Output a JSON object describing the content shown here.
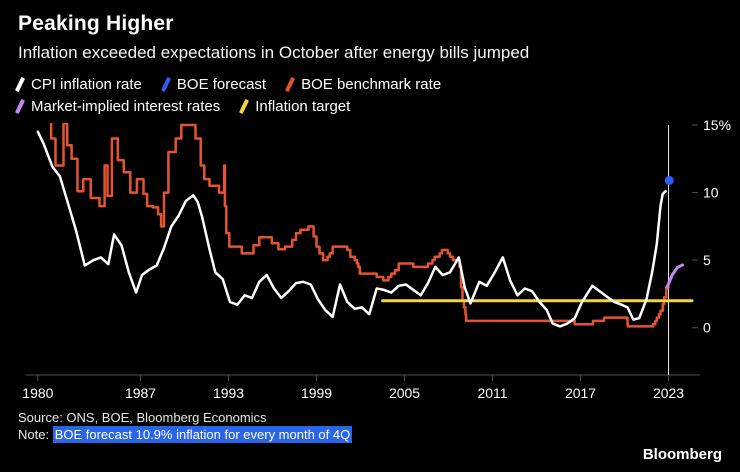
{
  "header": {
    "title": "Peaking Higher",
    "subtitle": "Inflation exceeded expectations in October after energy bills jumped"
  },
  "legend": {
    "row_break_after": 3,
    "items": [
      {
        "label": "CPI inflation rate",
        "color": "#ffffff"
      },
      {
        "label": "BOE forecast",
        "color": "#2f5cf5"
      },
      {
        "label": "BOE benchmark rate",
        "color": "#e4552f"
      },
      {
        "label": "Market-implied interest rates",
        "color": "#c589ee"
      },
      {
        "label": "Inflation target",
        "color": "#f3d43f"
      }
    ]
  },
  "footer": {
    "source": "Source: ONS, BOE, Bloomberg Economics",
    "note_prefix": "Note: ",
    "note_highlight": "BOE forecast 10.9% inflation for every month of 4Q",
    "highlight_color": "#2a65e8",
    "brand": "Bloomberg"
  },
  "chart_data": {
    "type": "line",
    "title": "Peaking Higher",
    "xlabel": "",
    "ylabel": "",
    "xlim": [
      1979.6,
      2024.6
    ],
    "ylim": [
      -3.5,
      15
    ],
    "x_ticks": [
      1980,
      1987,
      1993,
      1999,
      2005,
      2011,
      2017,
      2023
    ],
    "y_ticks": [
      0,
      5,
      10,
      15
    ],
    "y_tick_labels": [
      "0",
      "5",
      "10",
      "15%"
    ],
    "grid": false,
    "legend_position": "top",
    "marker_line_x": 2023.0,
    "series": [
      {
        "name": "BOE benchmark rate",
        "color": "#e4552f",
        "style": "step",
        "width": 2.5,
        "points": [
          [
            1979.6,
            17
          ],
          [
            1980.5,
            16
          ],
          [
            1980.9,
            14
          ],
          [
            1981.2,
            12
          ],
          [
            1981.75,
            15.1
          ],
          [
            1982.0,
            13.5
          ],
          [
            1982.3,
            12.5
          ],
          [
            1982.7,
            10.1
          ],
          [
            1983.1,
            11.0
          ],
          [
            1983.6,
            9.6
          ],
          [
            1984.2,
            9.0
          ],
          [
            1984.55,
            12.0
          ],
          [
            1984.75,
            9.75
          ],
          [
            1985.05,
            14.0
          ],
          [
            1985.45,
            12.4
          ],
          [
            1985.85,
            11.5
          ],
          [
            1986.3,
            10.0
          ],
          [
            1986.75,
            11.0
          ],
          [
            1987.2,
            9.9
          ],
          [
            1987.45,
            9.0
          ],
          [
            1987.85,
            8.9
          ],
          [
            1988.2,
            8.4
          ],
          [
            1988.4,
            7.5
          ],
          [
            1988.6,
            10.0
          ],
          [
            1988.9,
            13.0
          ],
          [
            1989.4,
            14.0
          ],
          [
            1989.78,
            15.0
          ],
          [
            1990.75,
            14.0
          ],
          [
            1991.1,
            12.0
          ],
          [
            1991.35,
            11.0
          ],
          [
            1991.7,
            10.5
          ],
          [
            1992.35,
            10.0
          ],
          [
            1992.7,
            12.0
          ],
          [
            1992.75,
            9.0
          ],
          [
            1992.85,
            7.0
          ],
          [
            1993.05,
            6.0
          ],
          [
            1993.9,
            5.5
          ],
          [
            1994.7,
            6.1
          ],
          [
            1995.1,
            6.7
          ],
          [
            1995.95,
            6.25
          ],
          [
            1996.4,
            5.8
          ],
          [
            1996.85,
            6.0
          ],
          [
            1997.35,
            6.5
          ],
          [
            1997.6,
            7.0
          ],
          [
            1997.9,
            7.25
          ],
          [
            1998.45,
            7.5
          ],
          [
            1998.8,
            6.75
          ],
          [
            1999.0,
            6.0
          ],
          [
            1999.2,
            5.5
          ],
          [
            1999.45,
            5.0
          ],
          [
            1999.75,
            5.25
          ],
          [
            1999.9,
            5.5
          ],
          [
            2000.1,
            6.0
          ],
          [
            2001.1,
            5.75
          ],
          [
            2001.3,
            5.25
          ],
          [
            2001.6,
            5.0
          ],
          [
            2001.75,
            4.75
          ],
          [
            2001.85,
            4.5
          ],
          [
            2001.95,
            4.0
          ],
          [
            2003.1,
            3.75
          ],
          [
            2003.55,
            3.5
          ],
          [
            2003.9,
            3.75
          ],
          [
            2004.1,
            4.0
          ],
          [
            2004.35,
            4.25
          ],
          [
            2004.6,
            4.75
          ],
          [
            2005.6,
            4.5
          ],
          [
            2006.6,
            4.75
          ],
          [
            2006.9,
            5.0
          ],
          [
            2007.05,
            5.25
          ],
          [
            2007.4,
            5.5
          ],
          [
            2007.55,
            5.75
          ],
          [
            2007.95,
            5.5
          ],
          [
            2008.1,
            5.25
          ],
          [
            2008.3,
            5.0
          ],
          [
            2008.75,
            4.5
          ],
          [
            2008.85,
            3.0
          ],
          [
            2008.95,
            2.0
          ],
          [
            2009.05,
            1.5
          ],
          [
            2009.15,
            1.0
          ],
          [
            2009.2,
            0.5
          ],
          [
            2016.6,
            0.25
          ],
          [
            2017.85,
            0.5
          ],
          [
            2018.6,
            0.75
          ],
          [
            2020.2,
            0.25
          ],
          [
            2020.23,
            0.1
          ],
          [
            2021.95,
            0.25
          ],
          [
            2022.1,
            0.5
          ],
          [
            2022.2,
            0.75
          ],
          [
            2022.35,
            1.0
          ],
          [
            2022.45,
            1.25
          ],
          [
            2022.6,
            1.75
          ],
          [
            2022.7,
            2.25
          ],
          [
            2022.85,
            3.0
          ],
          [
            2023.0,
            3.0
          ]
        ]
      },
      {
        "name": "Inflation target",
        "color": "#f3d43f",
        "style": "line",
        "width": 3,
        "points": [
          [
            2003.5,
            2.0
          ],
          [
            2024.6,
            2.0
          ]
        ]
      },
      {
        "name": "CPI inflation rate",
        "color": "#ffffff",
        "style": "line",
        "width": 2.5,
        "points": [
          [
            1980,
            14.5
          ],
          [
            1980.4,
            13.6
          ],
          [
            1981,
            11.9
          ],
          [
            1981.5,
            11.2
          ],
          [
            1982,
            9.4
          ],
          [
            1982.6,
            7.2
          ],
          [
            1983.2,
            4.6
          ],
          [
            1983.8,
            5.0
          ],
          [
            1984.3,
            5.2
          ],
          [
            1984.8,
            4.7
          ],
          [
            1985.2,
            6.9
          ],
          [
            1985.7,
            6.1
          ],
          [
            1986.2,
            4.1
          ],
          [
            1986.7,
            2.6
          ],
          [
            1987.1,
            3.9
          ],
          [
            1987.6,
            4.3
          ],
          [
            1988.1,
            4.6
          ],
          [
            1988.6,
            5.9
          ],
          [
            1989.1,
            7.5
          ],
          [
            1989.6,
            8.3
          ],
          [
            1990.1,
            9.4
          ],
          [
            1990.6,
            9.8
          ],
          [
            1990.9,
            9.3
          ],
          [
            1991.2,
            8.2
          ],
          [
            1991.7,
            5.8
          ],
          [
            1992.1,
            4.1
          ],
          [
            1992.6,
            3.6
          ],
          [
            1993.1,
            1.9
          ],
          [
            1993.6,
            1.7
          ],
          [
            1994.1,
            2.4
          ],
          [
            1994.6,
            2.2
          ],
          [
            1995.1,
            3.4
          ],
          [
            1995.6,
            3.9
          ],
          [
            1996.1,
            2.9
          ],
          [
            1996.6,
            2.2
          ],
          [
            1997.1,
            2.7
          ],
          [
            1997.6,
            3.3
          ],
          [
            1998.1,
            3.4
          ],
          [
            1998.6,
            3.2
          ],
          [
            1999.1,
            2.1
          ],
          [
            1999.6,
            1.3
          ],
          [
            2000.1,
            0.8
          ],
          [
            2000.6,
            3.2
          ],
          [
            2001.1,
            1.9
          ],
          [
            2001.6,
            1.4
          ],
          [
            2002.1,
            1.5
          ],
          [
            2002.6,
            1.0
          ],
          [
            2003.1,
            2.9
          ],
          [
            2003.6,
            2.8
          ],
          [
            2004.1,
            2.6
          ],
          [
            2004.6,
            3.1
          ],
          [
            2005.1,
            3.2
          ],
          [
            2005.6,
            2.8
          ],
          [
            2006.1,
            2.4
          ],
          [
            2006.6,
            3.3
          ],
          [
            2007.1,
            4.5
          ],
          [
            2007.6,
            3.9
          ],
          [
            2008.1,
            4.1
          ],
          [
            2008.7,
            5.2
          ],
          [
            2009.1,
            3.0
          ],
          [
            2009.5,
            1.8
          ],
          [
            2010.1,
            3.4
          ],
          [
            2010.6,
            3.1
          ],
          [
            2011.1,
            4.0
          ],
          [
            2011.7,
            5.2
          ],
          [
            2012.2,
            3.5
          ],
          [
            2012.7,
            2.4
          ],
          [
            2013.2,
            2.9
          ],
          [
            2013.7,
            2.7
          ],
          [
            2014.2,
            1.9
          ],
          [
            2014.7,
            1.3
          ],
          [
            2015.1,
            0.3
          ],
          [
            2015.6,
            0.1
          ],
          [
            2016.1,
            0.3
          ],
          [
            2016.6,
            0.7
          ],
          [
            2017.1,
            1.9
          ],
          [
            2017.8,
            3.1
          ],
          [
            2018.3,
            2.7
          ],
          [
            2018.8,
            2.3
          ],
          [
            2019.3,
            1.9
          ],
          [
            2019.8,
            1.7
          ],
          [
            2020.2,
            1.5
          ],
          [
            2020.6,
            0.6
          ],
          [
            2021.0,
            0.7
          ],
          [
            2021.5,
            2.1
          ],
          [
            2021.9,
            4.2
          ],
          [
            2022.2,
            6.2
          ],
          [
            2022.45,
            9.0
          ],
          [
            2022.6,
            9.9
          ],
          [
            2022.8,
            10.1
          ]
        ]
      },
      {
        "name": "Market-implied interest rates",
        "color": "#c589ee",
        "style": "line",
        "width": 3,
        "points": [
          [
            2022.9,
            3.0
          ],
          [
            2023.25,
            3.9
          ],
          [
            2023.6,
            4.45
          ],
          [
            2023.95,
            4.65
          ]
        ]
      }
    ],
    "point_series": [
      {
        "name": "BOE forecast",
        "color": "#2f5cf5",
        "radius": 4.5,
        "points": [
          [
            2023.05,
            10.9
          ]
        ]
      }
    ]
  }
}
